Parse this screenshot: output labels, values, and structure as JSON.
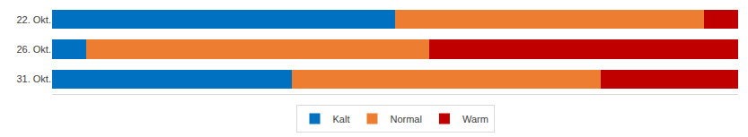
{
  "chart_data": {
    "type": "bar",
    "orientation": "horizontal",
    "stacked": true,
    "categories": [
      "22. Okt.",
      "26. Okt.",
      "31. Okt."
    ],
    "series": [
      {
        "name": "Kalt",
        "color": "#0070c0",
        "values": [
          50,
          5,
          35
        ]
      },
      {
        "name": "Normal",
        "color": "#ed7d31",
        "values": [
          45,
          50,
          45
        ]
      },
      {
        "name": "Warm",
        "color": "#c00000",
        "values": [
          5,
          45,
          20
        ]
      }
    ],
    "xlim": [
      0,
      100
    ],
    "grid": false,
    "legend": "bottom",
    "tick_labels": "y"
  }
}
